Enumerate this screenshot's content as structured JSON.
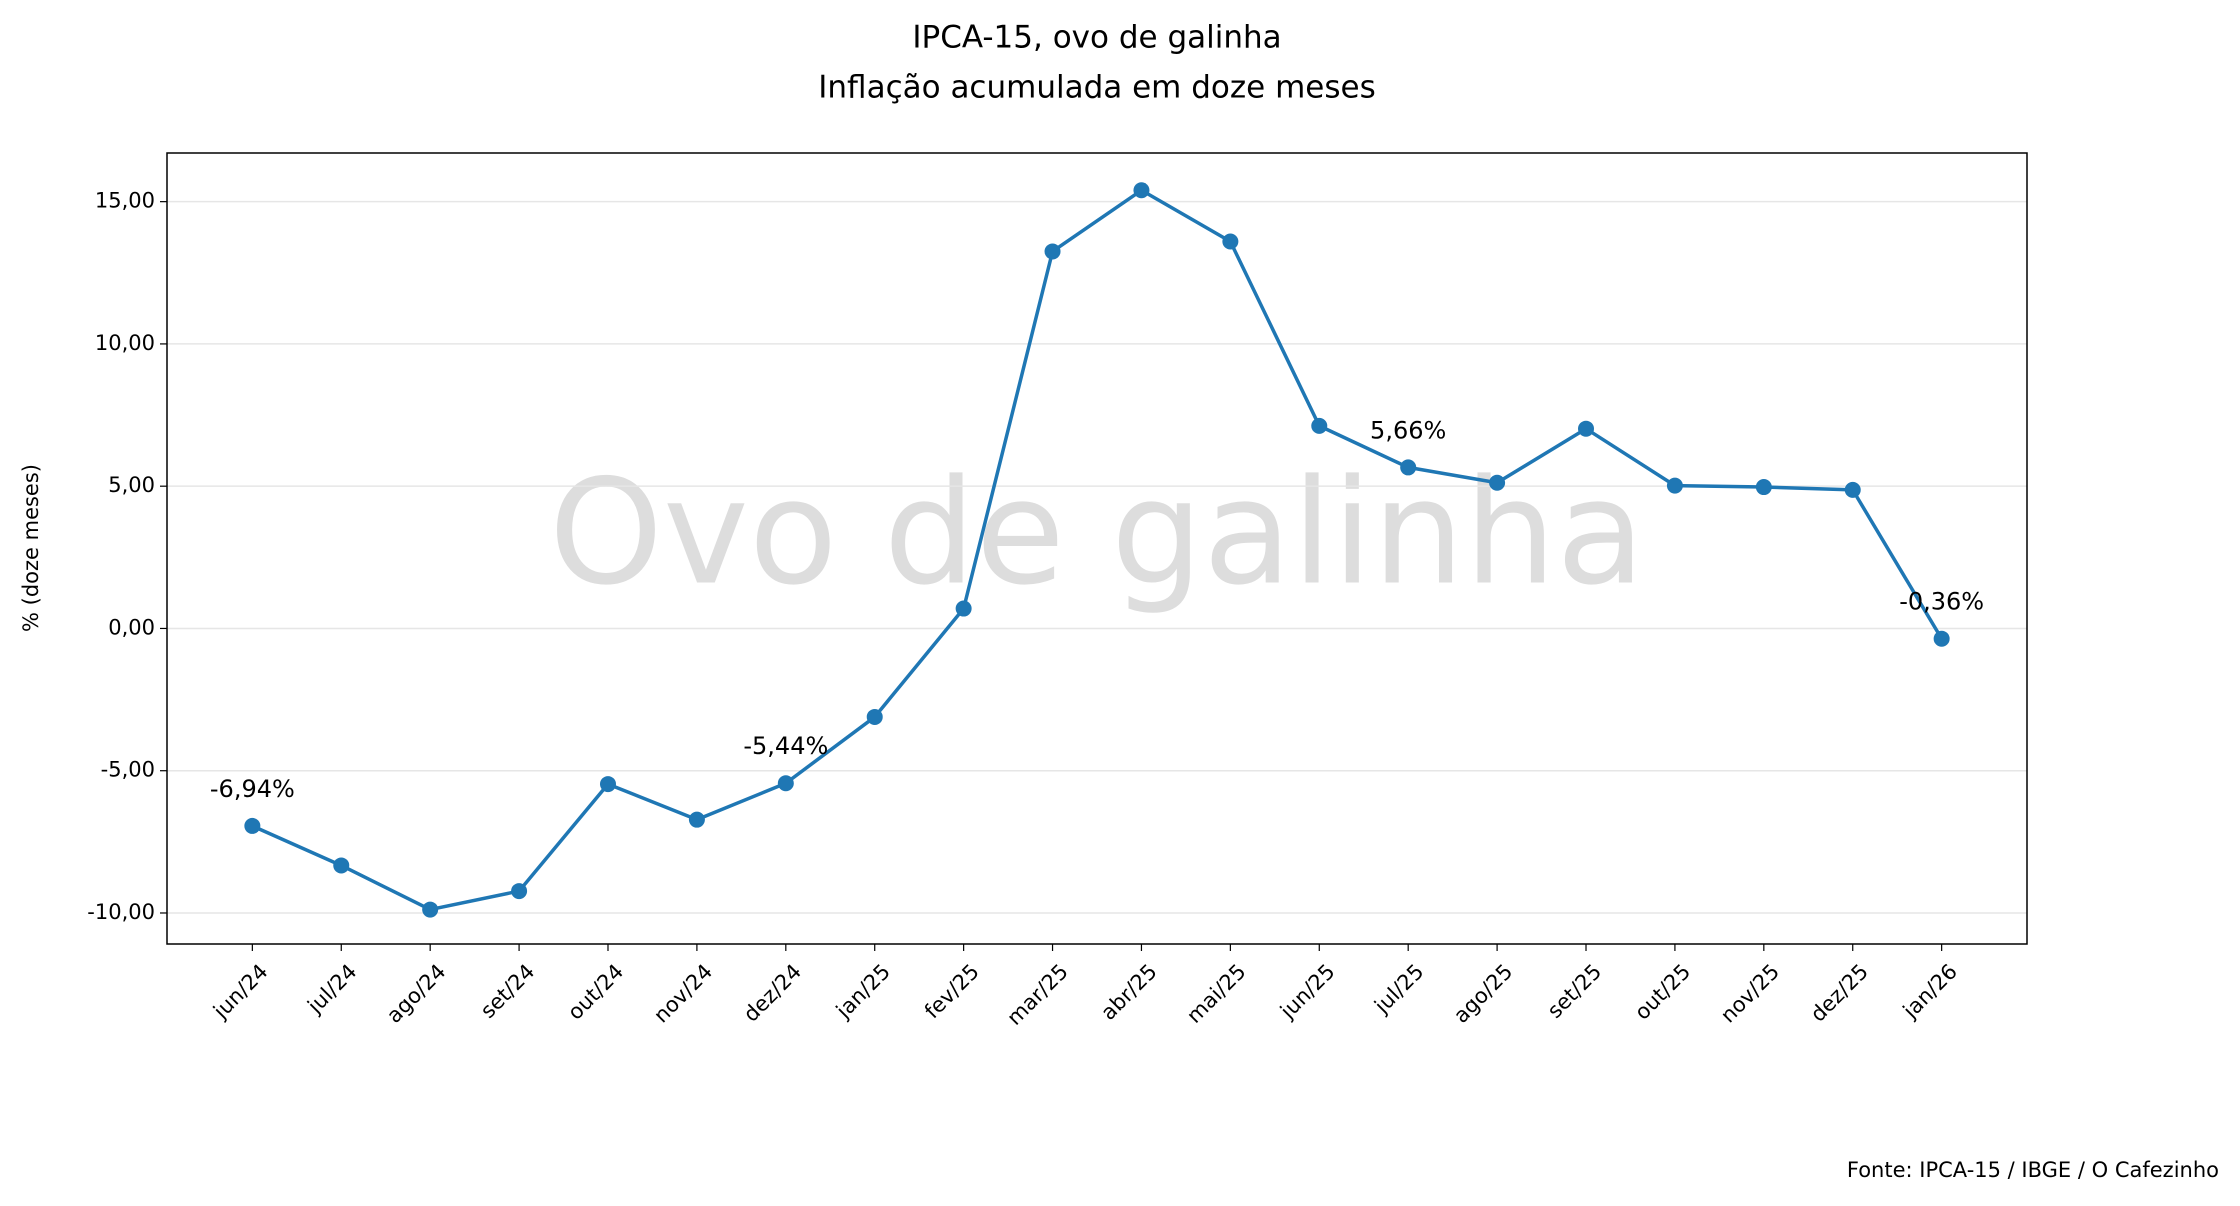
{
  "chart_data": {
    "type": "line",
    "title": "IPCA-15, ovo de galinha",
    "subtitle": "Inflação acumulada em doze meses",
    "y_label": "% (doze meses)",
    "watermark": "Ovo de galinha",
    "source": "Fonte: IPCA-15 / IBGE / O Cafezinho",
    "categories": [
      "jun/24",
      "jul/24",
      "ago/24",
      "set/24",
      "out/24",
      "nov/24",
      "dez/24",
      "jan/25",
      "fev/25",
      "mar/25",
      "abr/25",
      "mai/25",
      "jun/25",
      "jul/25",
      "ago/25",
      "set/25",
      "out/25",
      "nov/25",
      "dez/25",
      "jan/26"
    ],
    "series": [
      {
        "name": "IPCA-15 ovo de galinha",
        "color": "#1f77b4",
        "values": [
          -6.94,
          -8.33,
          -9.88,
          -9.23,
          -5.47,
          -6.72,
          -5.44,
          -3.11,
          0.7,
          13.25,
          15.4,
          13.6,
          7.12,
          5.66,
          5.12,
          7.02,
          5.02,
          4.97,
          4.87,
          -0.36
        ],
        "value_labels": [
          "-6,94%",
          null,
          null,
          null,
          null,
          null,
          "-5,44%",
          null,
          null,
          null,
          null,
          null,
          null,
          "5,66%",
          null,
          null,
          null,
          null,
          null,
          "-0,36%"
        ]
      }
    ],
    "ylim": [
      -11.09,
      16.71
    ],
    "yticks": [
      {
        "value": -10,
        "label": "-10,00"
      },
      {
        "value": -5,
        "label": "-5,00"
      },
      {
        "value": 0,
        "label": "0,00"
      },
      {
        "value": 5,
        "label": "5,00"
      },
      {
        "value": 10,
        "label": "10,00"
      },
      {
        "value": 15,
        "label": "15,00"
      }
    ],
    "grid": true
  }
}
